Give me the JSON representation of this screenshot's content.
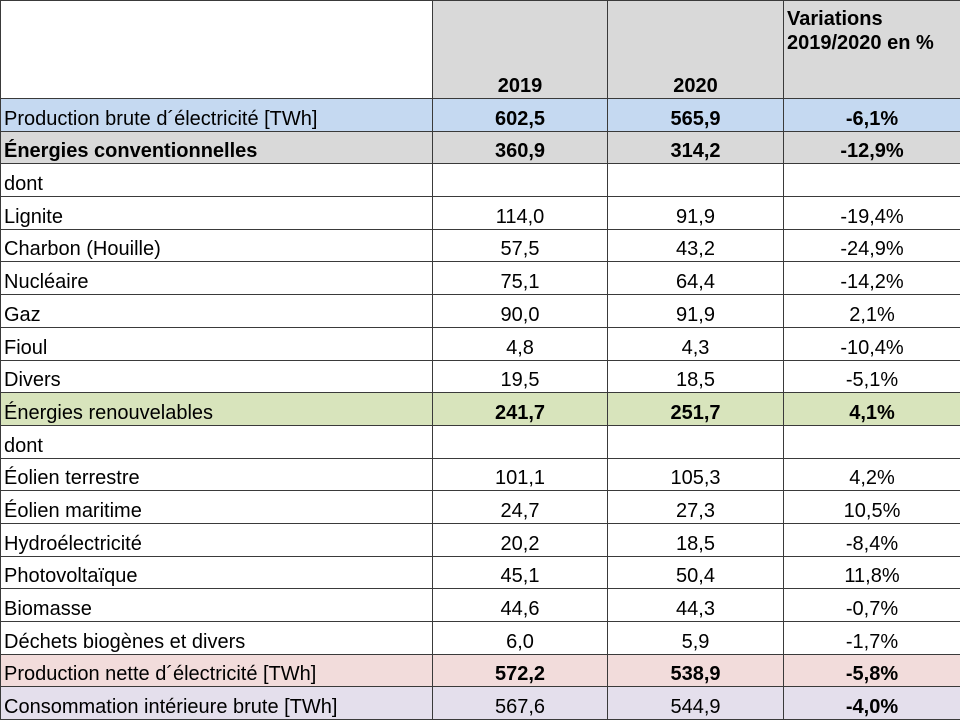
{
  "table": {
    "header": [
      "2019",
      "2020",
      "Variations 2019/2020 en %"
    ],
    "rows": [
      [
        "Production brute d´électricité [TWh]",
        "602,5",
        "565,9",
        "-6,1%"
      ],
      [
        "Énergies conventionnelles",
        "360,9",
        "314,2",
        "-12,9%"
      ],
      [
        "dont"
      ],
      [
        "Lignite",
        "114,0",
        "91,9",
        "-19,4%"
      ],
      [
        "Charbon (Houille)",
        "57,5",
        "43,2",
        "-24,9%"
      ],
      [
        "Nucléaire",
        "75,1",
        "64,4",
        "-14,2%"
      ],
      [
        "Gaz",
        "90,0",
        "91,9",
        "2,1%"
      ],
      [
        "Fioul",
        "4,8",
        "4,3",
        "-10,4%"
      ],
      [
        "Divers",
        "19,5",
        "18,5",
        "-5,1%"
      ],
      [
        "Énergies renouvelables",
        "241,7",
        "251,7",
        "4,1%"
      ],
      [
        "dont"
      ],
      [
        "Éolien terrestre",
        "101,1",
        "105,3",
        "4,2%"
      ],
      [
        "Éolien maritime",
        "24,7",
        "27,3",
        "10,5%"
      ],
      [
        "Hydroélectricité",
        "20,2",
        "18,5",
        "-8,4%"
      ],
      [
        "Photovoltaïque",
        "45,1",
        "50,4",
        "11,8%"
      ],
      [
        "Biomasse",
        "44,6",
        "44,3",
        "-0,7%"
      ],
      [
        "Déchets biogènes et divers",
        "6,0",
        "5,9",
        "-1,7%"
      ],
      [
        "Production nette d´électricité [TWh]",
        "572,2",
        "538,9",
        "-5,8%"
      ],
      [
        "Consommation intérieure brute [TWh]",
        "567,6",
        "544,9",
        "-4,0%"
      ]
    ]
  }
}
